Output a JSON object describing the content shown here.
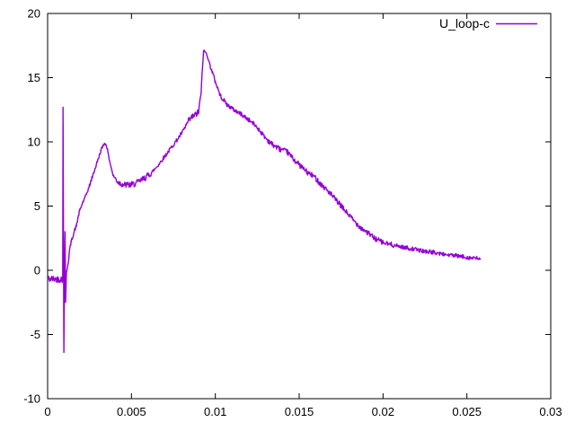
{
  "window": {
    "background": "#ffffff",
    "border_color": "#000000"
  },
  "chart_data": {
    "type": "line",
    "title": "",
    "xlabel": "",
    "ylabel": "",
    "xlim": [
      0,
      0.03
    ],
    "ylim": [
      -10,
      20
    ],
    "grid": false,
    "border": true,
    "tick_style": "inward-mirrored",
    "axis_color": "#000000",
    "xticks": {
      "values": [
        0,
        0.005,
        0.01,
        0.015,
        0.02,
        0.025,
        0.03
      ],
      "labels": [
        "0",
        "0.005",
        "0.01",
        "0.015",
        "0.02",
        "0.025",
        "0.03"
      ]
    },
    "yticks": {
      "values": [
        -10,
        -5,
        0,
        5,
        10,
        15,
        20
      ],
      "labels": [
        "-10",
        "-5",
        "0",
        "5",
        "10",
        "15",
        "20"
      ]
    },
    "legend": {
      "position": "top-right-inside",
      "label": "U_loop-c"
    },
    "series": [
      {
        "name": "U_loop-c",
        "color": "#9400d3",
        "line_width": 1.4,
        "x_start": 0.0,
        "x_end": 0.0258,
        "sample_step": 3e-05,
        "noise_seed": 42,
        "envelope_points": [
          [
            0.0,
            -0.68
          ],
          [
            0.0009,
            -0.68
          ],
          [
            0.00092,
            12.7
          ],
          [
            0.00097,
            -6.4
          ],
          [
            0.001,
            -0.9
          ],
          [
            0.00104,
            3.0
          ],
          [
            0.00107,
            -2.5
          ],
          [
            0.00112,
            -0.2
          ],
          [
            0.00118,
            0.2
          ],
          [
            0.00125,
            0.8
          ],
          [
            0.0013,
            1.5
          ],
          [
            0.0014,
            2.2
          ],
          [
            0.0016,
            3.1
          ],
          [
            0.0017,
            3.4
          ],
          [
            0.0019,
            4.6
          ],
          [
            0.0021,
            5.3
          ],
          [
            0.00225,
            5.7
          ],
          [
            0.0025,
            6.6
          ],
          [
            0.0028,
            7.8
          ],
          [
            0.003,
            8.6
          ],
          [
            0.0032,
            9.4
          ],
          [
            0.00335,
            9.85
          ],
          [
            0.0035,
            9.8
          ],
          [
            0.0037,
            8.5
          ],
          [
            0.0039,
            7.4
          ],
          [
            0.0042,
            6.85
          ],
          [
            0.0046,
            6.65
          ],
          [
            0.005,
            6.65
          ],
          [
            0.0054,
            6.85
          ],
          [
            0.0058,
            7.2
          ],
          [
            0.0062,
            7.6
          ],
          [
            0.0066,
            8.2
          ],
          [
            0.007,
            8.9
          ],
          [
            0.0074,
            9.6
          ],
          [
            0.0078,
            10.3
          ],
          [
            0.0081,
            10.9
          ],
          [
            0.0084,
            11.6
          ],
          [
            0.0086,
            11.9
          ],
          [
            0.0088,
            12.1
          ],
          [
            0.009,
            12.3
          ],
          [
            0.00915,
            13.8
          ],
          [
            0.00922,
            15.5
          ],
          [
            0.0093,
            17.1
          ],
          [
            0.0094,
            17.0
          ],
          [
            0.0095,
            16.8
          ],
          [
            0.0097,
            15.9
          ],
          [
            0.01,
            14.7
          ],
          [
            0.0103,
            13.6
          ],
          [
            0.0107,
            12.9
          ],
          [
            0.0111,
            12.5
          ],
          [
            0.0115,
            12.2
          ],
          [
            0.0119,
            11.8
          ],
          [
            0.0123,
            11.4
          ],
          [
            0.0127,
            10.8
          ],
          [
            0.013,
            10.3
          ],
          [
            0.0134,
            9.8
          ],
          [
            0.0139,
            9.4
          ],
          [
            0.0143,
            9.2
          ],
          [
            0.0147,
            8.6
          ],
          [
            0.0151,
            8.1
          ],
          [
            0.0155,
            7.6
          ],
          [
            0.0159,
            7.3
          ],
          [
            0.0163,
            6.7
          ],
          [
            0.0167,
            6.2
          ],
          [
            0.0171,
            5.6
          ],
          [
            0.0175,
            5.0
          ],
          [
            0.0179,
            4.4
          ],
          [
            0.0183,
            3.8
          ],
          [
            0.0187,
            3.3
          ],
          [
            0.0191,
            2.9
          ],
          [
            0.0195,
            2.5
          ],
          [
            0.02,
            2.15
          ],
          [
            0.0206,
            1.95
          ],
          [
            0.0212,
            1.8
          ],
          [
            0.0218,
            1.65
          ],
          [
            0.0224,
            1.5
          ],
          [
            0.023,
            1.4
          ],
          [
            0.0236,
            1.25
          ],
          [
            0.0242,
            1.15
          ],
          [
            0.0248,
            1.05
          ],
          [
            0.0253,
            0.95
          ],
          [
            0.0258,
            0.9
          ]
        ],
        "noise_bands": [
          [
            0.0,
            0.0009,
            0.27
          ],
          [
            0.0009,
            0.00122,
            0.0
          ],
          [
            0.00122,
            0.0036,
            0.13
          ],
          [
            0.0036,
            0.004,
            0.08
          ],
          [
            0.004,
            0.0062,
            0.25
          ],
          [
            0.0062,
            0.0082,
            0.15
          ],
          [
            0.0082,
            0.0091,
            0.26
          ],
          [
            0.0091,
            0.0097,
            0.09
          ],
          [
            0.0097,
            0.013,
            0.17
          ],
          [
            0.013,
            0.0205,
            0.21
          ],
          [
            0.0205,
            0.0258,
            0.16
          ]
        ]
      }
    ]
  }
}
